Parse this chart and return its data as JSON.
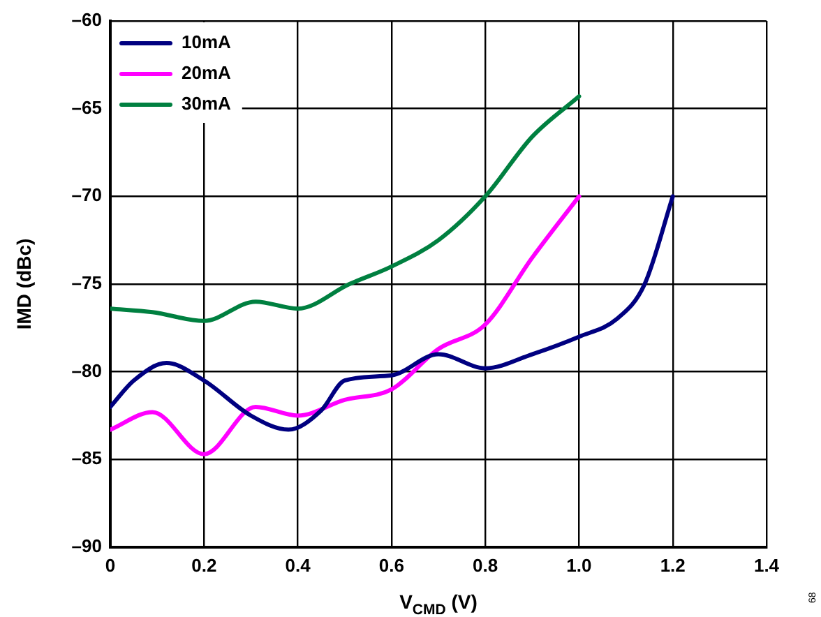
{
  "chart_data": {
    "type": "line",
    "xlabel": "V$_{CMD}$ (V)",
    "ylabel": "IMD (dBc)",
    "xlim": [
      0,
      1.4
    ],
    "ylim": [
      -90,
      -60
    ],
    "xticks": [
      {
        "value": 0,
        "label": "0"
      },
      {
        "value": 0.2,
        "label": "0.2"
      },
      {
        "value": 0.4,
        "label": "0.4"
      },
      {
        "value": 0.6,
        "label": "0.6"
      },
      {
        "value": 0.8,
        "label": "0.8"
      },
      {
        "value": 1,
        "label": "1.0"
      },
      {
        "value": 1.2,
        "label": "1.2"
      },
      {
        "value": 1.4,
        "label": "1.4"
      }
    ],
    "yticks": [
      {
        "value": -90,
        "label": "–90"
      },
      {
        "value": -85,
        "label": "–85"
      },
      {
        "value": -80,
        "label": "–80"
      },
      {
        "value": -75,
        "label": "–75"
      },
      {
        "value": -70,
        "label": "–70"
      },
      {
        "value": -65,
        "label": "–65"
      },
      {
        "value": -60,
        "label": "–60"
      }
    ],
    "grid": true,
    "legend": "top left",
    "line_style": "solid",
    "marker": "none",
    "annotations": [
      "68"
    ],
    "series": [
      {
        "name": "10mA",
        "color": "#000080",
        "x": [
          0,
          0.05,
          0.12,
          0.2,
          0.3,
          0.38,
          0.45,
          0.5,
          0.6,
          0.7,
          0.8,
          0.9,
          1.0,
          1.08,
          1.14,
          1.2
        ],
        "values": [
          -82,
          -80.5,
          -79.5,
          -80.5,
          -82.5,
          -83.3,
          -82.2,
          -80.5,
          -80.2,
          -79,
          -79.8,
          -79,
          -78,
          -77,
          -75,
          -70
        ]
      },
      {
        "name": "20mA",
        "color": "#ff00ff",
        "x": [
          0,
          0.09,
          0.2,
          0.31,
          0.4,
          0.5,
          0.6,
          0.7,
          0.8,
          0.9,
          1.0
        ],
        "values": [
          -83.3,
          -82.3,
          -84.7,
          -82,
          -82.5,
          -81.6,
          -81,
          -78.7,
          -77.3,
          -73.5,
          -70
        ]
      },
      {
        "name": "30mA",
        "color": "#008040",
        "x": [
          0,
          0.09,
          0.2,
          0.31,
          0.4,
          0.51,
          0.6,
          0.7,
          0.8,
          0.9,
          1.0
        ],
        "values": [
          -76.4,
          -76.6,
          -77.1,
          -76,
          -76.4,
          -75,
          -74,
          -72.5,
          -70,
          -66.6,
          -64.3
        ]
      }
    ]
  }
}
